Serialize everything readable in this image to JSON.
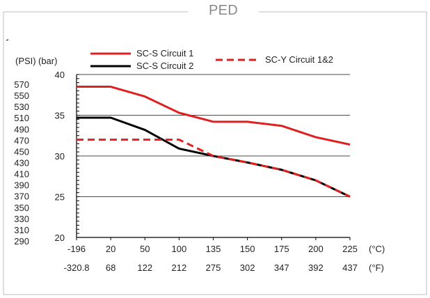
{
  "frame_title": "PED",
  "chart_data": {
    "type": "line",
    "y_unit_psi": "(PSI)",
    "y_unit_bar": "(bar)",
    "x_unit_c": "(°C)",
    "x_unit_f": "(°F)",
    "categories_c": [
      "-196",
      "20",
      "50",
      "100",
      "135",
      "150",
      "175",
      "200",
      "225"
    ],
    "categories_f": [
      "-320.8",
      "68",
      "122",
      "212",
      "275",
      "302",
      "347",
      "392",
      "437"
    ],
    "bar_ticks": [
      "20",
      "25",
      "30",
      "35",
      "40"
    ],
    "psi_ticks": [
      "290",
      "310",
      "330",
      "350",
      "370",
      "390",
      "410",
      "430",
      "450",
      "470",
      "490",
      "510",
      "530",
      "550",
      "570"
    ],
    "ylim": [
      20,
      40
    ],
    "grid": "horizontal",
    "legend": "top",
    "series": [
      {
        "name": "SC-S Circuit 1",
        "color": "#e02020",
        "style": "solid",
        "values": [
          38.5,
          38.5,
          37.3,
          35.3,
          34.2,
          34.2,
          33.7,
          32.3,
          31.4
        ]
      },
      {
        "name": "SC-S Circuit 2",
        "color": "#000000",
        "style": "solid",
        "values": [
          34.7,
          34.7,
          33.2,
          30.9,
          30.0,
          29.2,
          28.3,
          27.0,
          25.0
        ]
      },
      {
        "name": "SC-Y Circuit 1&2",
        "color": "#e02020",
        "style": "dashed",
        "values": [
          32.0,
          32.0,
          32.0,
          32.0,
          30.0,
          29.2,
          28.3,
          27.0,
          25.0
        ]
      }
    ]
  }
}
